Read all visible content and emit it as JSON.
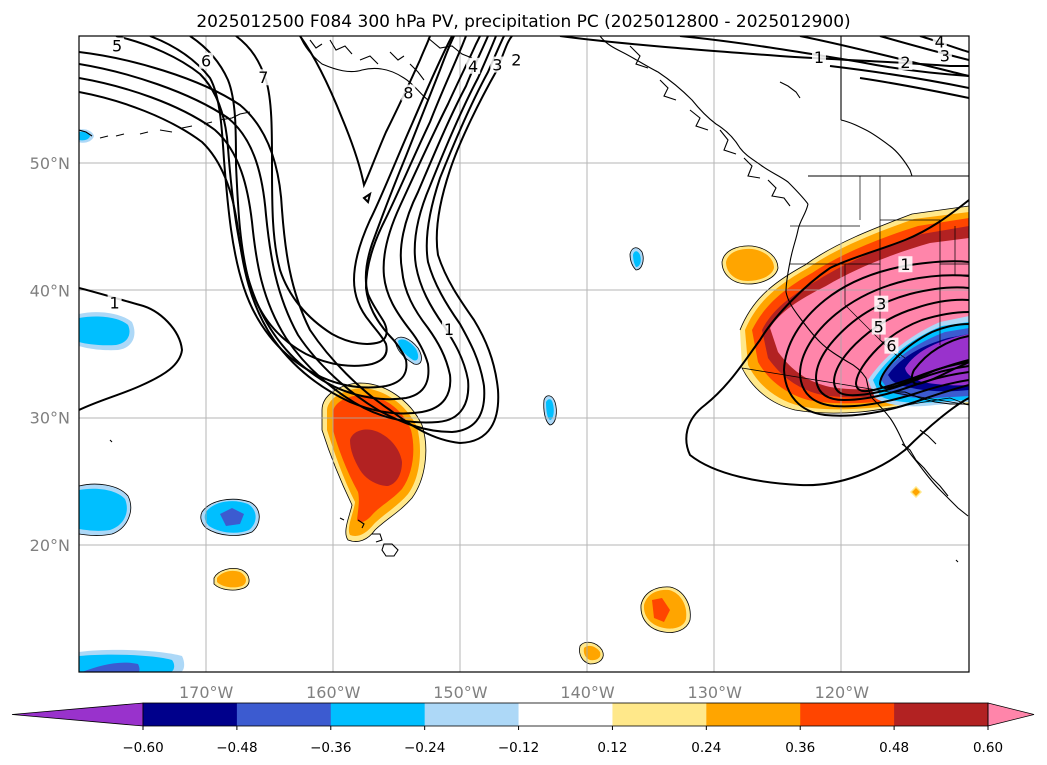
{
  "title": "2025012500 F084 300 hPa PV, precipitation PC (2025012800 - 2025012900)",
  "map": {
    "projection": "PlateCarree",
    "lon_range": [
      -180,
      -110
    ],
    "lat_range": [
      10,
      60
    ],
    "lon_ticks": [
      {
        "value": -170,
        "label": "170°W"
      },
      {
        "value": -160,
        "label": "160°W"
      },
      {
        "value": -150,
        "label": "150°W"
      },
      {
        "value": -140,
        "label": "140°W"
      },
      {
        "value": -130,
        "label": "130°W"
      },
      {
        "value": -120,
        "label": "120°W"
      }
    ],
    "lat_ticks": [
      {
        "value": 20,
        "label": "20°N"
      },
      {
        "value": 30,
        "label": "30°N"
      },
      {
        "value": 40,
        "label": "40°N"
      },
      {
        "value": 50,
        "label": "50°N"
      }
    ],
    "gridlines": true,
    "coastlines": true,
    "country_borders": true,
    "state_borders": true
  },
  "pv_contours": {
    "field": "300 hPa PV",
    "levels": [
      1,
      2,
      3,
      4,
      5,
      6,
      7,
      8
    ],
    "color": "#000000",
    "labels": [
      {
        "text": "5",
        "lon": -177,
        "lat": 59.1
      },
      {
        "text": "6",
        "lon": -170,
        "lat": 57.9
      },
      {
        "text": "7",
        "lon": -165.5,
        "lat": 56.6
      },
      {
        "text": "8",
        "lon": -154.1,
        "lat": 55.4
      },
      {
        "text": "4",
        "lon": -149,
        "lat": 57.5
      },
      {
        "text": "3",
        "lon": -147.1,
        "lat": 57.6
      },
      {
        "text": "2",
        "lon": -145.6,
        "lat": 58
      },
      {
        "text": "1",
        "lon": -150.9,
        "lat": 36.8
      },
      {
        "text": "1",
        "lon": -177.2,
        "lat": 38.9
      },
      {
        "text": "4",
        "lon": -112.3,
        "lat": 59.4
      },
      {
        "text": "3",
        "lon": -111.9,
        "lat": 58.3
      },
      {
        "text": "2",
        "lon": -115,
        "lat": 57.8
      },
      {
        "text": "1",
        "lon": -121.8,
        "lat": 58.2
      },
      {
        "text": "1",
        "lon": -115,
        "lat": 41.9
      },
      {
        "text": "3",
        "lon": -116.9,
        "lat": 38.8
      },
      {
        "text": "5",
        "lon": -117.1,
        "lat": 37
      },
      {
        "text": "6",
        "lon": -116.1,
        "lat": 35.5
      }
    ]
  },
  "precip_shading": {
    "field": "precipitation PC",
    "levels": [
      -0.6,
      -0.48,
      -0.36,
      -0.24,
      -0.12,
      0.12,
      0.24,
      0.36,
      0.48,
      0.6
    ],
    "colors": [
      "#9932cc",
      "#00008b",
      "#3c5bd0",
      "#00bfff",
      "#add8f7",
      "#ffffff",
      "#ffe88a",
      "#ffa500",
      "#ff4500",
      "#b22222",
      "#ff85aa"
    ],
    "extend": "both",
    "tick_labels": [
      "−0.60",
      "−0.48",
      "−0.36",
      "−0.24",
      "−0.12",
      "0.12",
      "0.24",
      "0.36",
      "0.48",
      "0.60"
    ]
  }
}
